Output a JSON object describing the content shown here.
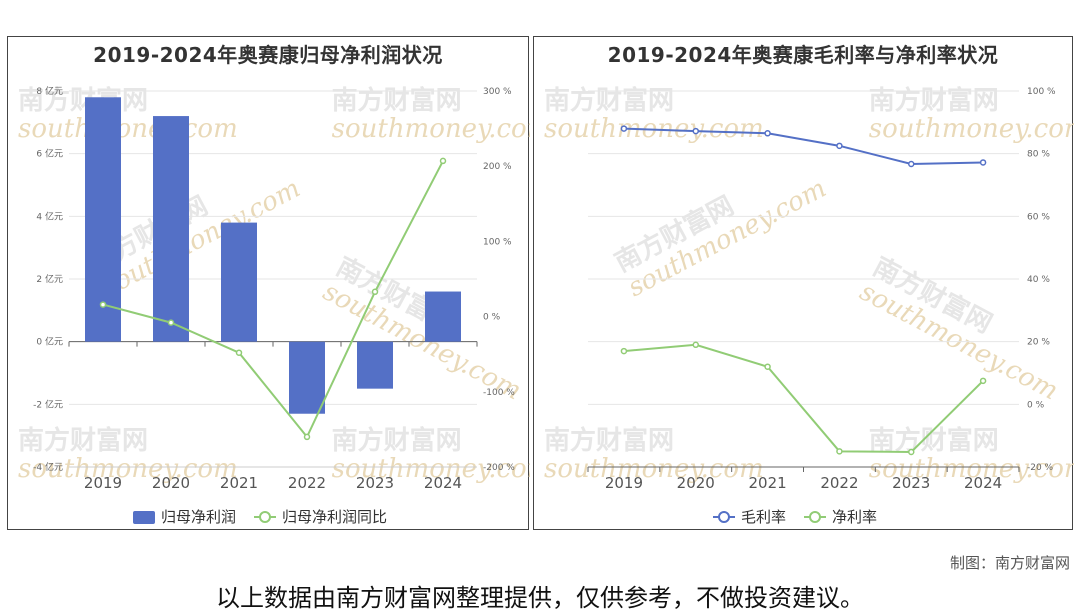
{
  "credit": "制图：南方财富网",
  "footnote": "以上数据由南方财富网整理提供，仅供参考，不做投资建议。",
  "watermark": {
    "cn": "南方财富网",
    "en": "southmoney.com"
  },
  "chart_data": [
    {
      "type": "bar",
      "title": "2019-2024年奥赛康归母净利润状况",
      "categories": [
        "2019",
        "2020",
        "2021",
        "2022",
        "2023",
        "2024"
      ],
      "y_left": {
        "ticks": [
          "8 亿元",
          "6 亿元",
          "4 亿元",
          "2 亿元",
          "0 亿元",
          "-2 亿元",
          "-4 亿元"
        ],
        "lim": [
          -4,
          8
        ]
      },
      "y_right": {
        "ticks": [
          "300 %",
          "200 %",
          "100 %",
          "0 %",
          "-100 %",
          "-200 %"
        ],
        "lim": [
          -200,
          300
        ]
      },
      "series": [
        {
          "name": "归母净利润",
          "kind": "bar",
          "axis": "left",
          "color": "#5470c6",
          "values": [
            7.8,
            7.2,
            3.8,
            -2.3,
            -1.5,
            1.6
          ]
        },
        {
          "name": "归母净利润同比",
          "kind": "line",
          "axis": "right",
          "color": "#91cc75",
          "values": [
            16,
            -8,
            -48,
            -160,
            33,
            207
          ]
        }
      ],
      "grid": true,
      "legend": "bottom-center"
    },
    {
      "type": "line",
      "title": "2019-2024年奥赛康毛利率与净利率状况",
      "categories": [
        "2019",
        "2020",
        "2021",
        "2022",
        "2023",
        "2024"
      ],
      "y_right": {
        "ticks": [
          "100 %",
          "80 %",
          "60 %",
          "40 %",
          "20 %",
          "0 %",
          "-20 %"
        ],
        "lim": [
          -20,
          100
        ]
      },
      "series": [
        {
          "name": "毛利率",
          "color": "#5470c6",
          "values": [
            88,
            87.2,
            86.5,
            82.5,
            76.7,
            77.2
          ]
        },
        {
          "name": "净利率",
          "color": "#91cc75",
          "values": [
            17,
            19,
            12,
            -15,
            -15.2,
            7.5
          ]
        }
      ],
      "grid": true,
      "legend": "bottom-center"
    }
  ]
}
